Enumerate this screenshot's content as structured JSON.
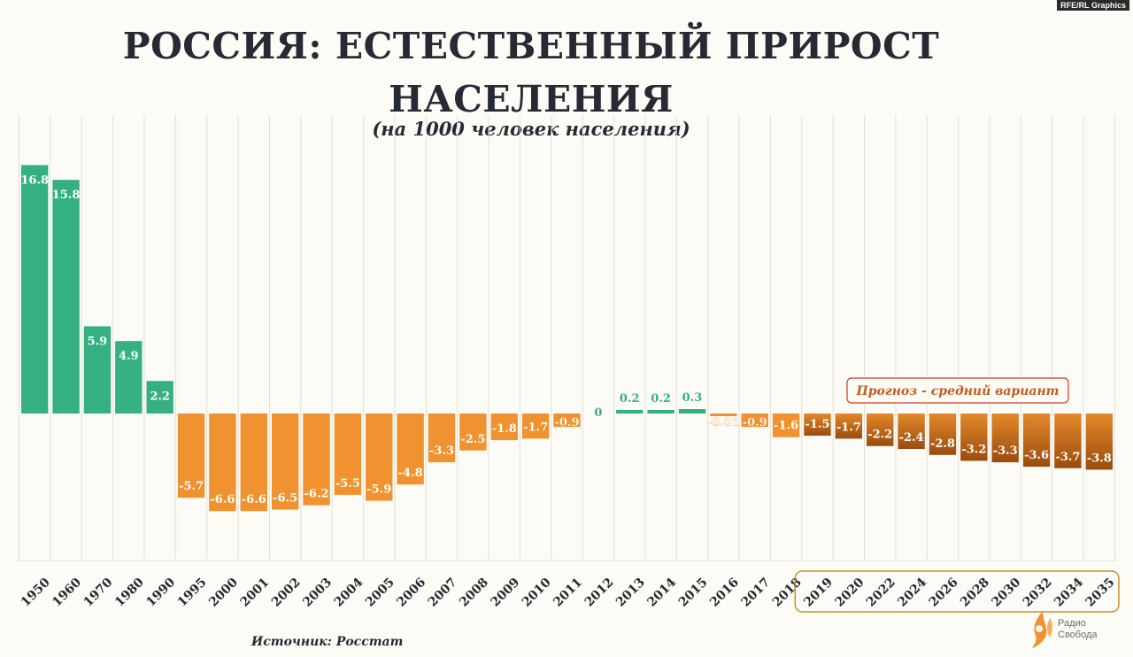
{
  "credit": "RFE/RL Graphics",
  "source": "Источник: Росстат",
  "logo": {
    "line1": "Радио",
    "line2": "Свобода"
  },
  "colors": {
    "positive": "#35b083",
    "negative": "#f0922f",
    "forecast_top": "#e3882b",
    "forecast_bottom": "#9a4c0e",
    "forecast_frame": "#c8922a",
    "forecast_label": "#c55a1d",
    "forecast_label_border": "#d23a2a",
    "grid": "#e2e0da",
    "axis": "#262a35"
  },
  "chart_data": {
    "type": "bar",
    "title": "РОССИЯ: ЕСТЕСТВЕННЫЙ ПРИРОСТ НАСЕЛЕНИЯ",
    "subtitle": "(на 1000 человек населения)",
    "xlabel": "",
    "ylabel": "",
    "ylim": [
      -10,
      17
    ],
    "grid": true,
    "categories": [
      "1950",
      "1960",
      "1970",
      "1980",
      "1990",
      "1995",
      "2000",
      "2001",
      "2002",
      "2003",
      "2004",
      "2005",
      "2006",
      "2007",
      "2008",
      "2009",
      "2010",
      "2011",
      "2012",
      "2013",
      "2014",
      "2015",
      "2016",
      "2017",
      "2018",
      "2019",
      "2020",
      "2022",
      "2024",
      "2026",
      "2028",
      "2030",
      "2032",
      "2034",
      "2035"
    ],
    "values": [
      16.8,
      15.8,
      5.9,
      4.9,
      2.2,
      -5.7,
      -6.6,
      -6.6,
      -6.5,
      -6.2,
      -5.5,
      -5.9,
      -4.8,
      -3.3,
      -2.5,
      -1.8,
      -1.7,
      -0.9,
      0,
      0.2,
      0.2,
      0.3,
      -0.01,
      -0.9,
      -1.6,
      -1.5,
      -1.7,
      -2.2,
      -2.4,
      -2.8,
      -3.2,
      -3.3,
      -3.6,
      -3.7,
      -3.8
    ],
    "labels": [
      "16.8",
      "15.8",
      "5.9",
      "4.9",
      "2.2",
      "-5.7",
      "-6.6",
      "-6.6",
      "-6.5",
      "-6.2",
      "-5.5",
      "-5.9",
      "-4.8",
      "-3.3",
      "-2.5",
      "-1.8",
      "-1.7",
      "-0.9",
      "0",
      "0.2",
      "0.2",
      "0.3",
      "-0.01",
      "-0.9",
      "-1.6",
      "-1.5",
      "-1.7",
      "-2.2",
      "-2.4",
      "-2.8",
      "-3.2",
      "-3.3",
      "-3.6",
      "-3.7",
      "-3.8"
    ],
    "forecast": {
      "label": "Прогноз - средний вариант",
      "from_category": "2019",
      "to_category": "2035"
    }
  }
}
